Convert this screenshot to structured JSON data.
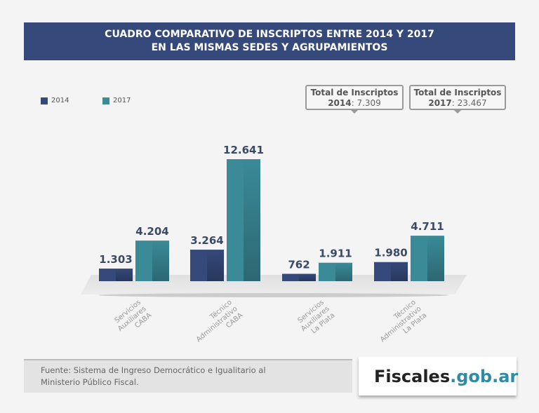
{
  "title_line1": "CUADRO COMPARATIVO DE INSCRIPTOS ENTRE 2014 Y 2017",
  "title_line2": "EN LAS MISMAS SEDES Y AGRUPAMIENTOS",
  "totals": [
    {
      "label": "Total de Inscriptos",
      "year": "2014",
      "value": ": 7.309"
    },
    {
      "label": "Total de Inscriptos",
      "year": "2017",
      "value": ": 23.467"
    }
  ],
  "source_line1": "Fuente: Sistema de Ingreso Democrático e Igualitario al",
  "source_line2": "Ministerio Público Fiscal.",
  "logo": {
    "text_dark": "Fiscales",
    "text_accent": ".gob.ar"
  },
  "chart_data": {
    "type": "bar",
    "categories": [
      [
        "Servicios",
        "Auxiliares",
        "CABA"
      ],
      [
        "Técnico",
        "Administrativo",
        "CABA"
      ],
      [
        "Servicios",
        "Auxiliares",
        "La Plata"
      ],
      [
        "Técnico",
        "Administrativo",
        "La Plata"
      ]
    ],
    "series": [
      {
        "name": "2014",
        "color": "#35497a",
        "values": [
          1303,
          3264,
          762,
          1980
        ],
        "labels": [
          "1.303",
          "3.264",
          "762",
          "1.980"
        ]
      },
      {
        "name": "2017",
        "color": "#3a8a98",
        "values": [
          4204,
          12641,
          1911,
          4711
        ],
        "labels": [
          "4.204",
          "12.641",
          "1.911",
          "4.711"
        ]
      }
    ],
    "legend": "top-left",
    "grid": false
  }
}
